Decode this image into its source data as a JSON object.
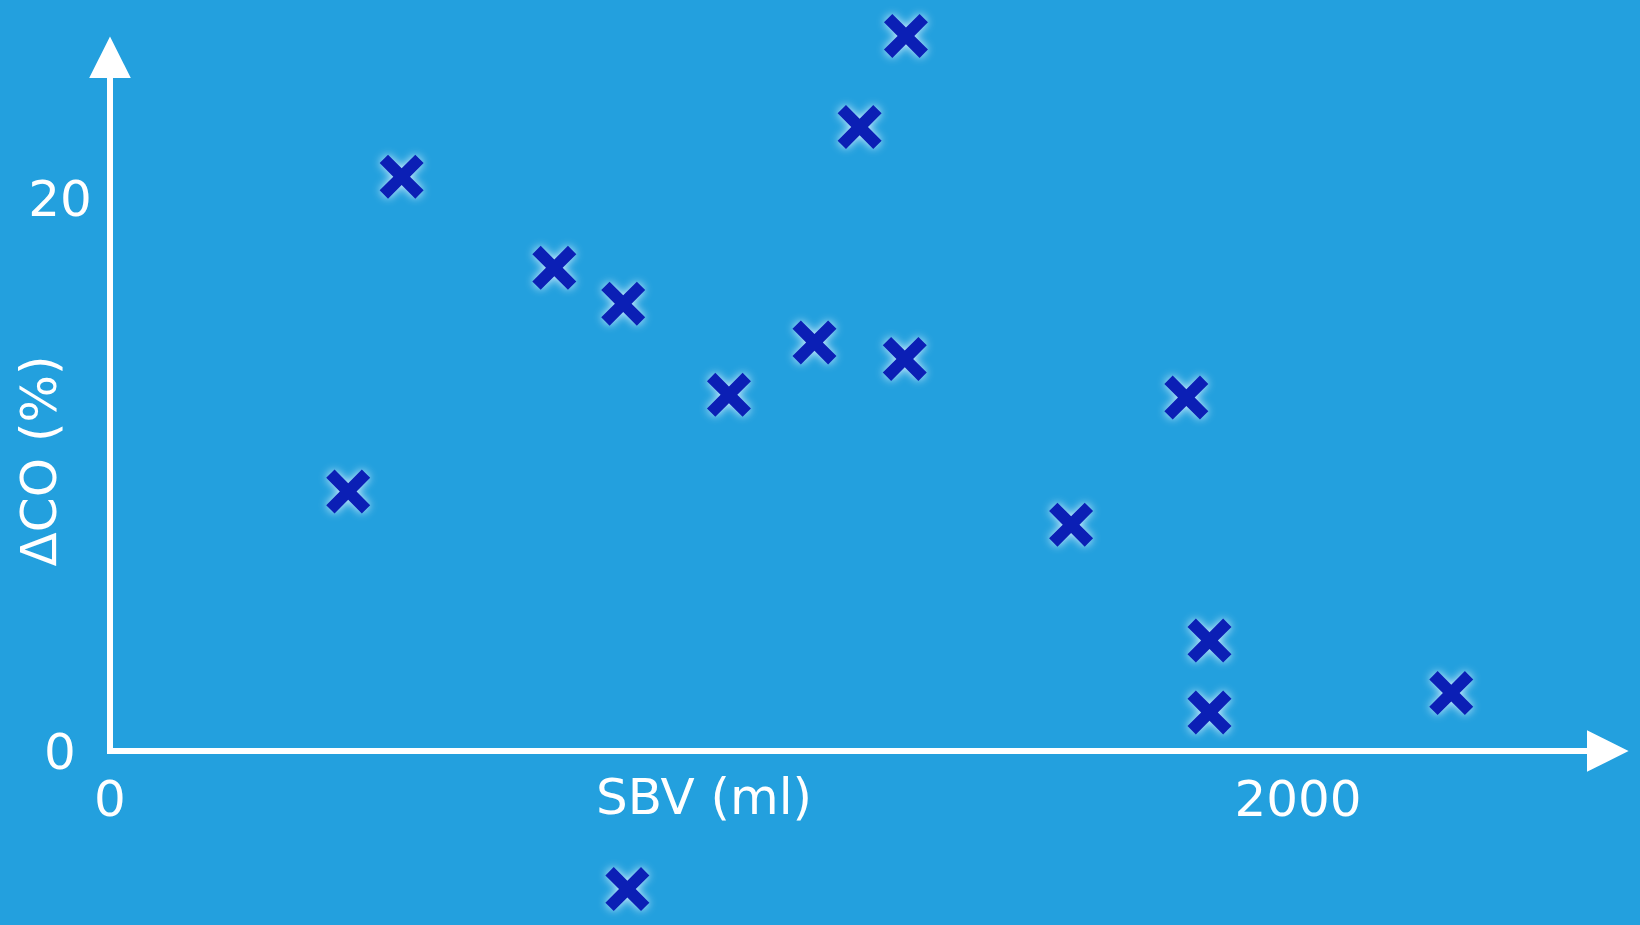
{
  "chart_data": {
    "type": "scatter",
    "xlabel": "SBV (ml)",
    "ylabel": "ΔCO (%)",
    "x": [
      401,
      491,
      748,
      864,
      1042,
      1186,
      1262,
      1340,
      1338,
      1618,
      1812,
      1851,
      1851,
      2258,
      871
    ],
    "series": [
      {
        "color": "#0b1fb5",
        "values": [
          9.4,
          20.8,
          17.5,
          16.2,
          12.9,
          14.8,
          22.6,
          25.9,
          14.2,
          8.2,
          12.8,
          4.0,
          1.4,
          2.1,
          -5.0
        ]
      }
    ],
    "xlim": [
      0,
      2500
    ],
    "ylim": [
      -6.3,
      27.2
    ],
    "xticks": [
      0,
      2000
    ],
    "yticks": [
      0,
      20
    ],
    "grid": false,
    "marker": "cross"
  }
}
